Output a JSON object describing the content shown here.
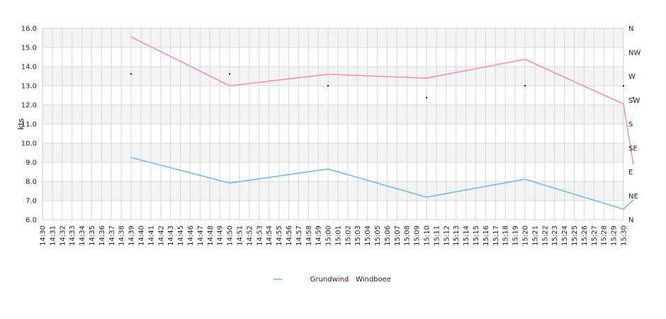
{
  "chart_data": {
    "type": "line",
    "ylabel": "kts",
    "ylim": [
      6.0,
      16.0
    ],
    "y_ticks": [
      "6.0",
      "7.0",
      "8.0",
      "9.0",
      "10.0",
      "11.0",
      "12.0",
      "13.0",
      "14.0",
      "15.0",
      "16.0"
    ],
    "right_axis_ticks": [
      "N",
      "NE",
      "E",
      "SE",
      "S",
      "SW",
      "W",
      "NW",
      "N"
    ],
    "x_ticks": [
      "14:30",
      "14:31",
      "14:32",
      "14:33",
      "14:34",
      "14:35",
      "14:36",
      "14:37",
      "14:38",
      "14:39",
      "14:40",
      "14:41",
      "14:42",
      "14:43",
      "14:45",
      "14:46",
      "14:47",
      "14:48",
      "14:49",
      "14:50",
      "14:51",
      "14:52",
      "14:53",
      "14:54",
      "14:55",
      "14:56",
      "14:57",
      "14:58",
      "14:59",
      "15:00",
      "15:01",
      "15:02",
      "15:03",
      "15:04",
      "15:05",
      "15:06",
      "15:07",
      "15:08",
      "15:09",
      "15:10",
      "15:11",
      "15:12",
      "15:13",
      "15:14",
      "15:15",
      "15:16",
      "15:17",
      "15:18",
      "15:19",
      "15:20",
      "15:21",
      "15:22",
      "15:23",
      "15:24",
      "15:25",
      "15:26",
      "15:27",
      "15:28",
      "15:29",
      "15:30"
    ],
    "grid": true,
    "legend_position": "bottom-center",
    "series": [
      {
        "name": "Grundwind",
        "color": "#7cb5ec",
        "points": [
          [
            9,
            9.25
          ],
          [
            19,
            7.92
          ],
          [
            29,
            8.65
          ],
          [
            39,
            7.18
          ],
          [
            49,
            8.12
          ],
          [
            59,
            6.55
          ],
          [
            60,
            7.05
          ]
        ]
      },
      {
        "name": "Windboee",
        "color": "#f28fbf",
        "points": [
          [
            9,
            15.55
          ],
          [
            19,
            13.0
          ],
          [
            29,
            13.6
          ],
          [
            39,
            13.4
          ],
          [
            49,
            14.38
          ],
          [
            59,
            12.05
          ],
          [
            60,
            8.9
          ]
        ]
      }
    ],
    "direction_markers": [
      [
        9,
        13.62
      ],
      [
        19,
        13.62
      ],
      [
        29,
        13.0
      ],
      [
        39,
        12.38
      ],
      [
        49,
        13.0
      ],
      [
        59,
        13.0
      ],
      [
        60,
        12.38
      ]
    ]
  }
}
